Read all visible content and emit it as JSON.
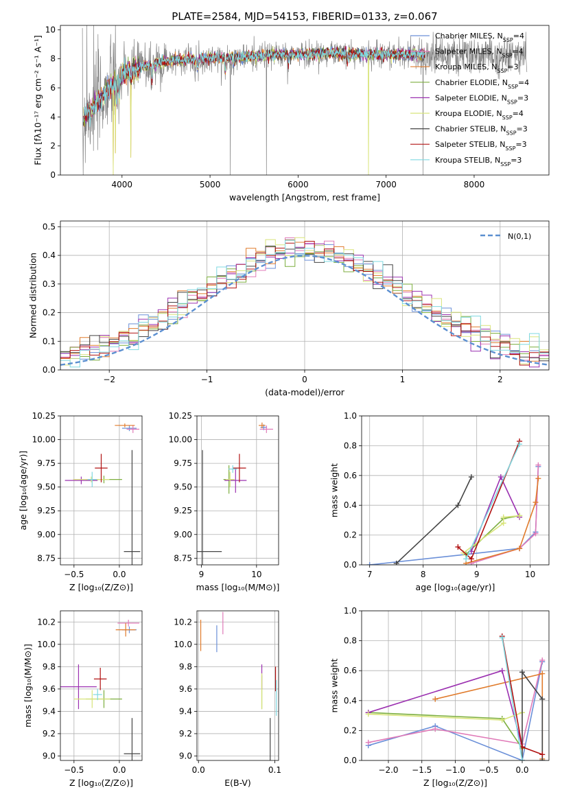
{
  "colors": {
    "cM": "#6a8fd8",
    "sM": "#e07ab8",
    "kM": "#e07a2a",
    "cE": "#7cae3e",
    "sE": "#9b30b0",
    "kE": "#d8e47a",
    "cS": "#444444",
    "sS": "#b01010",
    "kS": "#7fd8e0",
    "obs": "#808080",
    "gauss": "#5b8fd0"
  },
  "chart_data": [
    {
      "id": "spectrum",
      "type": "line",
      "title": "PLATE=2584, MJD=54153, FIBERID=0133, z=0.067",
      "xlabel": "wavelength [Angstrom, rest frame]",
      "ylabel": "Flux [fλ10⁻¹⁷ erg cm⁻² s⁻¹ A⁻¹]",
      "xlim": [
        3300,
        8850
      ],
      "ylim": [
        0,
        10.3
      ],
      "xticks": [
        4000,
        5000,
        6000,
        7000,
        8000
      ],
      "xtick_labels": [
        "4000",
        "5000",
        "6000",
        "7000",
        "8000"
      ],
      "yticks": [
        0,
        2,
        4,
        6,
        8,
        10
      ],
      "ytick_labels": [
        "0",
        "2",
        "4",
        "6",
        "8",
        "10"
      ],
      "grid": false,
      "legend_position": "right",
      "legend": [
        {
          "label": "Chabrier MILES, N",
          "sub": "SSP",
          "tail": "=4",
          "ck": "cM"
        },
        {
          "label": "Salpeter MILES, N",
          "sub": "SSP",
          "tail": "=4",
          "ck": "sM"
        },
        {
          "label": "Kroupa MILES, N",
          "sub": "SSP",
          "tail": "=3",
          "ck": "kM"
        },
        {
          "label": "Chabrier ELODIE, N",
          "sub": "SSP",
          "tail": "=4",
          "ck": "cE"
        },
        {
          "label": "Salpeter ELODIE, N",
          "sub": "SSP",
          "tail": "=3",
          "ck": "sE"
        },
        {
          "label": "Kroupa ELODIE, N",
          "sub": "SSP",
          "tail": "=4",
          "ck": "kE"
        },
        {
          "label": "Chabrier STELIB, N",
          "sub": "SSP",
          "tail": "=3",
          "ck": "cS"
        },
        {
          "label": "Salpeter STELIB, N",
          "sub": "SSP",
          "tail": "=3",
          "ck": "sS"
        },
        {
          "label": "Kroupa STELIB, N",
          "sub": "SSP",
          "tail": "=3",
          "ck": "kS"
        }
      ],
      "continuum": [
        [
          3550,
          3.9
        ],
        [
          3650,
          4.5
        ],
        [
          3750,
          5.2
        ],
        [
          3850,
          6.0
        ],
        [
          3950,
          6.7
        ],
        [
          4050,
          7.1
        ],
        [
          4150,
          7.3
        ],
        [
          4250,
          7.5
        ],
        [
          4400,
          7.7
        ],
        [
          4600,
          7.9
        ],
        [
          4800,
          8.0
        ],
        [
          5000,
          8.0
        ],
        [
          5200,
          8.1
        ],
        [
          5400,
          8.1
        ],
        [
          5600,
          8.2
        ],
        [
          5800,
          8.3
        ],
        [
          6000,
          8.3
        ],
        [
          6200,
          8.35
        ],
        [
          6400,
          8.4
        ],
        [
          6600,
          8.35
        ],
        [
          6800,
          8.3
        ],
        [
          7000,
          8.3
        ],
        [
          7200,
          8.3
        ],
        [
          7400,
          8.3
        ],
        [
          7600,
          8.25
        ],
        [
          7800,
          8.25
        ],
        [
          8000,
          8.2
        ],
        [
          8200,
          8.2
        ],
        [
          8400,
          8.2
        ],
        [
          8600,
          8.3
        ]
      ],
      "model_end": 7440,
      "obs_noise_start": 7380,
      "absorption_lines": [
        [
          3934,
          1.5
        ],
        [
          3968,
          1.5
        ],
        [
          4102,
          1.0
        ],
        [
          4340,
          1.2
        ],
        [
          4861,
          0.8
        ],
        [
          5175,
          0.9
        ],
        [
          5270,
          0.5
        ],
        [
          5890,
          0.7
        ],
        [
          6563,
          0.4
        ]
      ],
      "spikes": [
        [
          3560,
          0
        ],
        [
          3600,
          10.3
        ],
        [
          3680,
          10.3
        ],
        [
          5230,
          0
        ],
        [
          5640,
          0
        ],
        [
          7420,
          0
        ]
      ],
      "model_spikes": [
        [
          3900,
          0
        ],
        [
          6800,
          0
        ],
        [
          3925,
          1.5
        ],
        [
          4100,
          1.2
        ]
      ]
    },
    {
      "id": "residuals",
      "type": "step",
      "xlabel": "(data-model)/error",
      "ylabel": "Normed distribution",
      "xlim": [
        -2.5,
        2.5
      ],
      "ylim": [
        0,
        0.52
      ],
      "xticks": [
        -2,
        -1,
        0,
        1,
        2
      ],
      "xtick_labels": [
        "−2",
        "−1",
        "0",
        "1",
        "2"
      ],
      "yticks": [
        0,
        0.1,
        0.2,
        0.3,
        0.4,
        0.5
      ],
      "ytick_labels": [
        "0.0",
        "0.1",
        "0.2",
        "0.3",
        "0.4",
        "0.5"
      ],
      "grid": true,
      "legend_position": "top-right",
      "gauss_label": "N(0,1)",
      "bin_width": 0.1
    },
    {
      "id": "age_Z",
      "type": "errorbar",
      "xlabel": "Z [log₁₀(Z/Z⊙)]",
      "ylabel": "age  [log₁₀(age/yr)]",
      "xlim": [
        -0.65,
        0.25
      ],
      "ylim": [
        8.68,
        10.25
      ],
      "xticks": [
        -0.5,
        0.0
      ],
      "xtick_labels": [
        "−0.5",
        "0.0"
      ],
      "yticks": [
        8.75,
        9.0,
        9.25,
        9.5,
        9.75,
        10.0,
        10.25
      ],
      "ytick_labels": [
        "8.75",
        "9.00",
        "9.25",
        "9.50",
        "9.75",
        "10.00",
        "10.25"
      ],
      "grid": true,
      "points": [
        {
          "ck": "cM",
          "x": 0.11,
          "y": 10.12,
          "xe": 0.08,
          "ye": 0.03
        },
        {
          "ck": "sM",
          "x": 0.15,
          "y": 10.11,
          "xe": 0.07,
          "ye": 0.04
        },
        {
          "ck": "kM",
          "x": 0.06,
          "y": 10.15,
          "xe": 0.11,
          "ye": 0.02
        },
        {
          "ck": "cE",
          "x": -0.17,
          "y": 9.58,
          "xe": 0.2,
          "ye": 0.04
        },
        {
          "ck": "sE",
          "x": -0.42,
          "y": 9.57,
          "xe": 0.18,
          "ye": 0.04
        },
        {
          "ck": "kE",
          "x": -0.31,
          "y": 9.58,
          "xe": 0.2,
          "ye": 0.03
        },
        {
          "ck": "cS",
          "x": 0.14,
          "y": 8.82,
          "xe": 0.09,
          "ye": 1.07
        },
        {
          "ck": "sS",
          "x": -0.2,
          "y": 9.7,
          "xe": 0.07,
          "ye": 0.15
        },
        {
          "ck": "kS",
          "x": -0.3,
          "y": 9.58,
          "xe": 0.05,
          "ye": 0.08
        }
      ]
    },
    {
      "id": "age_mass",
      "type": "errorbar",
      "xlabel": "mass [log₁₀(M/M⊙)]",
      "ylabel": "",
      "xlim": [
        8.92,
        10.4
      ],
      "ylim": [
        8.68,
        10.25
      ],
      "xticks": [
        9,
        10
      ],
      "xtick_labels": [
        "9",
        "10"
      ],
      "yticks": [
        8.75,
        9.0,
        9.25,
        9.5,
        9.75,
        10.0,
        10.25
      ],
      "ytick_labels": [
        "8.75",
        "9.00",
        "9.25",
        "9.50",
        "9.75",
        "10.00",
        "10.25"
      ],
      "grid": true,
      "points": [
        {
          "ck": "cM",
          "x": 10.13,
          "y": 10.13,
          "xe": 0.06,
          "ye": 0.03
        },
        {
          "ck": "sM",
          "x": 10.18,
          "y": 10.11,
          "xe": 0.12,
          "ye": 0.04
        },
        {
          "ck": "kM",
          "x": 10.1,
          "y": 10.15,
          "xe": 0.06,
          "ye": 0.03
        },
        {
          "ck": "cE",
          "x": 9.5,
          "y": 9.58,
          "xe": 0.1,
          "ye": 0.15
        },
        {
          "ck": "sE",
          "x": 9.62,
          "y": 9.57,
          "xe": 0.2,
          "ye": 0.13
        },
        {
          "ck": "kE",
          "x": 9.52,
          "y": 9.58,
          "xe": 0.08,
          "ye": 0.08
        },
        {
          "ck": "cS",
          "x": 9.02,
          "y": 8.82,
          "xe": 0.35,
          "ye": 1.07
        },
        {
          "ck": "sS",
          "x": 9.69,
          "y": 9.7,
          "xe": 0.12,
          "ye": 0.15
        },
        {
          "ck": "kS",
          "x": 9.57,
          "y": 9.69,
          "xe": 0.08,
          "ye": 0.04
        }
      ]
    },
    {
      "id": "mw_age",
      "type": "line",
      "xlabel": "age  [log₁₀(age/yr)]",
      "ylabel": "mass weight",
      "xlim": [
        6.85,
        10.35
      ],
      "ylim": [
        0,
        1.0
      ],
      "xticks": [
        7,
        8,
        9,
        10
      ],
      "xtick_labels": [
        "7",
        "8",
        "9",
        "10"
      ],
      "yticks": [
        0,
        0.2,
        0.4,
        0.6,
        0.8,
        1.0
      ],
      "ytick_labels": [
        "0.0",
        "0.2",
        "0.4",
        "0.6",
        "0.8",
        "1.0"
      ],
      "grid": true,
      "series": [
        {
          "ck": "cM",
          "x": [
            7.0,
            8.8,
            9.8,
            10.1,
            10.15
          ],
          "y": [
            0.0,
            0.07,
            0.11,
            0.22,
            0.66
          ]
        },
        {
          "ck": "sM",
          "x": [
            8.9,
            9.8,
            10.1,
            10.15
          ],
          "y": [
            0.01,
            0.11,
            0.21,
            0.67
          ]
        },
        {
          "ck": "kM",
          "x": [
            8.8,
            9.8,
            10.1,
            10.15
          ],
          "y": [
            0.01,
            0.11,
            0.42,
            0.58
          ]
        },
        {
          "ck": "cE",
          "x": [
            8.8,
            9.5,
            9.8
          ],
          "y": [
            0.07,
            0.31,
            0.33
          ]
        },
        {
          "ck": "sE",
          "x": [
            8.9,
            9.45,
            9.8
          ],
          "y": [
            0.09,
            0.59,
            0.32
          ]
        },
        {
          "ck": "kE",
          "x": [
            8.75,
            9.5,
            9.5,
            9.8
          ],
          "y": [
            0.08,
            0.28,
            0.32,
            0.33
          ]
        },
        {
          "ck": "cS",
          "x": [
            7.5,
            8.65,
            8.9
          ],
          "y": [
            0.01,
            0.4,
            0.59
          ]
        },
        {
          "ck": "sS",
          "x": [
            8.65,
            8.9,
            9.8
          ],
          "y": [
            0.12,
            0.04,
            0.83
          ]
        },
        {
          "ck": "kS",
          "x": [
            8.8,
            9.8
          ],
          "y": [
            0.04,
            0.81
          ]
        }
      ]
    },
    {
      "id": "mass_Z",
      "type": "errorbar",
      "xlabel": "Z [log₁₀(Z/Z⊙)]",
      "ylabel": "mass [log₁₀(M/M⊙)]",
      "xlim": [
        -0.65,
        0.25
      ],
      "ylim": [
        8.96,
        10.3
      ],
      "xticks": [
        -0.5,
        0.0
      ],
      "xtick_labels": [
        "−0.5",
        "0.0"
      ],
      "yticks": [
        9.0,
        9.2,
        9.4,
        9.6,
        9.8,
        10.0,
        10.2
      ],
      "ytick_labels": [
        "9.0",
        "9.2",
        "9.4",
        "9.6",
        "9.8",
        "10.0",
        "10.2"
      ],
      "grid": true,
      "points": [
        {
          "ck": "cM",
          "x": 0.11,
          "y": 10.13,
          "xe": 0.08,
          "ye": 0.03
        },
        {
          "ck": "sM",
          "x": 0.1,
          "y": 10.19,
          "xe": 0.12,
          "ye": 0.03
        },
        {
          "ck": "kM",
          "x": 0.07,
          "y": 10.13,
          "xe": 0.11,
          "ye": 0.06
        },
        {
          "ck": "cE",
          "x": -0.17,
          "y": 9.51,
          "xe": 0.2,
          "ye": 0.08
        },
        {
          "ck": "sE",
          "x": -0.45,
          "y": 9.62,
          "xe": 0.2,
          "ye": 0.2
        },
        {
          "ck": "kE",
          "x": -0.3,
          "y": 9.51,
          "xe": 0.2,
          "ye": 0.08
        },
        {
          "ck": "cS",
          "x": 0.14,
          "y": 9.02,
          "xe": 0.09,
          "ye": 0.32
        },
        {
          "ck": "sS",
          "x": -0.21,
          "y": 9.69,
          "xe": 0.07,
          "ye": 0.1
        },
        {
          "ck": "kS",
          "x": -0.24,
          "y": 9.55,
          "xe": 0.05,
          "ye": 0.05
        }
      ]
    },
    {
      "id": "mass_ebv",
      "type": "errorbar",
      "xlabel": "E(B-V)",
      "ylabel": "",
      "xlim": [
        -0.002,
        0.105
      ],
      "ylim": [
        8.96,
        10.3
      ],
      "xticks": [
        0.0,
        0.1
      ],
      "xtick_labels": [
        "0.0",
        "0.1"
      ],
      "yticks": [
        9.0,
        9.2,
        9.4,
        9.6,
        9.8,
        10.0,
        10.2
      ],
      "ytick_labels": [
        "9.0",
        "9.2",
        "9.4",
        "9.6",
        "9.8",
        "10.0",
        "10.2"
      ],
      "grid": true,
      "points": [
        {
          "ck": "cM",
          "x": 0.024,
          "y": 10.05,
          "xe": 0,
          "ye": 0.12
        },
        {
          "ck": "sM",
          "x": 0.032,
          "y": 10.19,
          "xe": 0,
          "ye": 0.1
        },
        {
          "ck": "kM",
          "x": 0.003,
          "y": 10.08,
          "xe": 0,
          "ye": 0.14
        },
        {
          "ck": "cE",
          "x": 0.083,
          "y": 9.57,
          "xe": 0,
          "ye": 0.15
        },
        {
          "ck": "sE",
          "x": 0.083,
          "y": 9.71,
          "xe": 0,
          "ye": 0.11
        },
        {
          "ck": "kE",
          "x": 0.083,
          "y": 9.58,
          "xe": 0,
          "ye": 0.16
        },
        {
          "ck": "cS",
          "x": 0.094,
          "y": 9.12,
          "xe": 0,
          "ye": 0.22
        },
        {
          "ck": "sS",
          "x": 0.101,
          "y": 9.69,
          "xe": 0,
          "ye": 0.11
        },
        {
          "ck": "kS",
          "x": 0.102,
          "y": 9.52,
          "xe": 0,
          "ye": 0.16
        }
      ]
    },
    {
      "id": "mw_Z",
      "type": "line",
      "xlabel": "Z [log₁₀(Z/Z⊙)]",
      "ylabel": "mass weight",
      "xlim": [
        -2.4,
        0.4
      ],
      "ylim": [
        0,
        1.0
      ],
      "xticks": [
        -2.0,
        -1.5,
        -1.0,
        -0.5,
        0.0
      ],
      "xtick_labels": [
        "−2.0",
        "−1.5",
        "−1.0",
        "−0.5",
        "0.0"
      ],
      "yticks": [
        0,
        0.2,
        0.4,
        0.6,
        0.8,
        1.0
      ],
      "ytick_labels": [
        "0.0",
        "0.2",
        "0.4",
        "0.6",
        "0.8",
        "1.0"
      ],
      "grid": true,
      "series": [
        {
          "ck": "cM",
          "x": [
            -2.3,
            -1.3,
            0.0,
            0.3
          ],
          "y": [
            0.1,
            0.23,
            0.0,
            0.66
          ]
        },
        {
          "ck": "sM",
          "x": [
            -2.3,
            -1.3,
            0.0,
            0.3
          ],
          "y": [
            0.12,
            0.21,
            0.11,
            0.67
          ]
        },
        {
          "ck": "kM",
          "x": [
            -1.3,
            0.3,
            0.3
          ],
          "y": [
            0.41,
            0.58,
            0.01
          ]
        },
        {
          "ck": "cE",
          "x": [
            -2.3,
            -0.3,
            0.0
          ],
          "y": [
            0.32,
            0.28,
            0.08
          ]
        },
        {
          "ck": "sE",
          "x": [
            -2.3,
            -0.3,
            0.0
          ],
          "y": [
            0.32,
            0.6,
            0.09
          ]
        },
        {
          "ck": "kE",
          "x": [
            -2.3,
            -0.3,
            0.0
          ],
          "y": [
            0.31,
            0.27,
            0.32
          ]
        },
        {
          "ck": "cS",
          "x": [
            0.0,
            0.0,
            0.3,
            0.3
          ],
          "y": [
            0.0,
            0.59,
            0.41,
            0.0
          ]
        },
        {
          "ck": "sS",
          "x": [
            -0.3,
            0.0,
            0.3
          ],
          "y": [
            0.83,
            0.09,
            0.04
          ]
        },
        {
          "ck": "kS",
          "x": [
            -0.3,
            0.0
          ],
          "y": [
            0.82,
            0.0
          ]
        }
      ]
    }
  ]
}
